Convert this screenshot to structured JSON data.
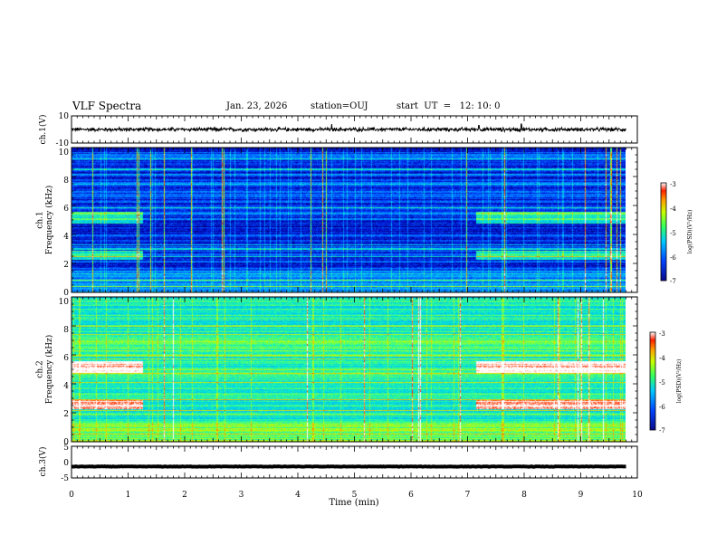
{
  "header": {
    "title": "VLF Spectra",
    "date": "Jan. 23, 2026",
    "station": "station=OUJ",
    "start": "start  UT  =   12: 10: 0"
  },
  "chart_data": [
    {
      "type": "line",
      "panel": "waveform-ch1",
      "ylabel": "ch.1(V)",
      "ylim": [
        -10,
        10
      ],
      "yticks": [
        "10",
        "-10"
      ],
      "baseline": 0,
      "noise_amplitude": 1.2,
      "spikes": [
        {
          "t": 4.6,
          "v": 4
        },
        {
          "t": 7.2,
          "v": 3
        },
        {
          "t": 7.95,
          "v": 4
        }
      ]
    },
    {
      "type": "heatmap",
      "panel": "spectrogram-ch1",
      "ylabel": "ch.1\nFrequency (kHz)",
      "ylim": [
        0,
        10
      ],
      "yticks": [
        "0",
        "2",
        "4",
        "6",
        "8",
        "10"
      ],
      "colorbar": {
        "label": "log(PSD)(V²/Hz)",
        "min": -7,
        "max": -3,
        "ticks": [
          "-3",
          "-4",
          "-5",
          "-6",
          "-7"
        ]
      }
    },
    {
      "type": "heatmap",
      "panel": "spectrogram-ch2",
      "ylabel": "ch.2\nFrequency (kHz)",
      "ylim": [
        0,
        10
      ],
      "yticks": [
        "0",
        "2",
        "4",
        "6",
        "8",
        "10"
      ],
      "colorbar": {
        "label": "log(PSD)(V²/Hz)",
        "min": -7,
        "max": -3,
        "ticks": [
          "-3",
          "-4",
          "-5",
          "-6",
          "-7"
        ]
      }
    },
    {
      "type": "line",
      "panel": "waveform-ch3",
      "ylabel": "ch.3(V)",
      "ylim": [
        -5,
        5
      ],
      "yticks": [
        "5",
        "0",
        "-5"
      ],
      "baseline": -1.4,
      "noise_amplitude": 0.15
    }
  ],
  "xaxis": {
    "label": "Time (min)",
    "xlim": [
      0,
      10
    ],
    "ticks": [
      "0",
      "1",
      "2",
      "3",
      "4",
      "5",
      "6",
      "7",
      "8",
      "9",
      "10"
    ],
    "data_end": 9.8
  },
  "transmitter_on_periods": [
    [
      0,
      1.25
    ],
    [
      7.15,
      9.8
    ]
  ],
  "colors": {
    "colormap": [
      "#000033",
      "#0000aa",
      "#0044ff",
      "#00a0ff",
      "#00e0e0",
      "#40ff80",
      "#c0ff00",
      "#ffb000",
      "#ff3000",
      "#ffffff"
    ]
  }
}
